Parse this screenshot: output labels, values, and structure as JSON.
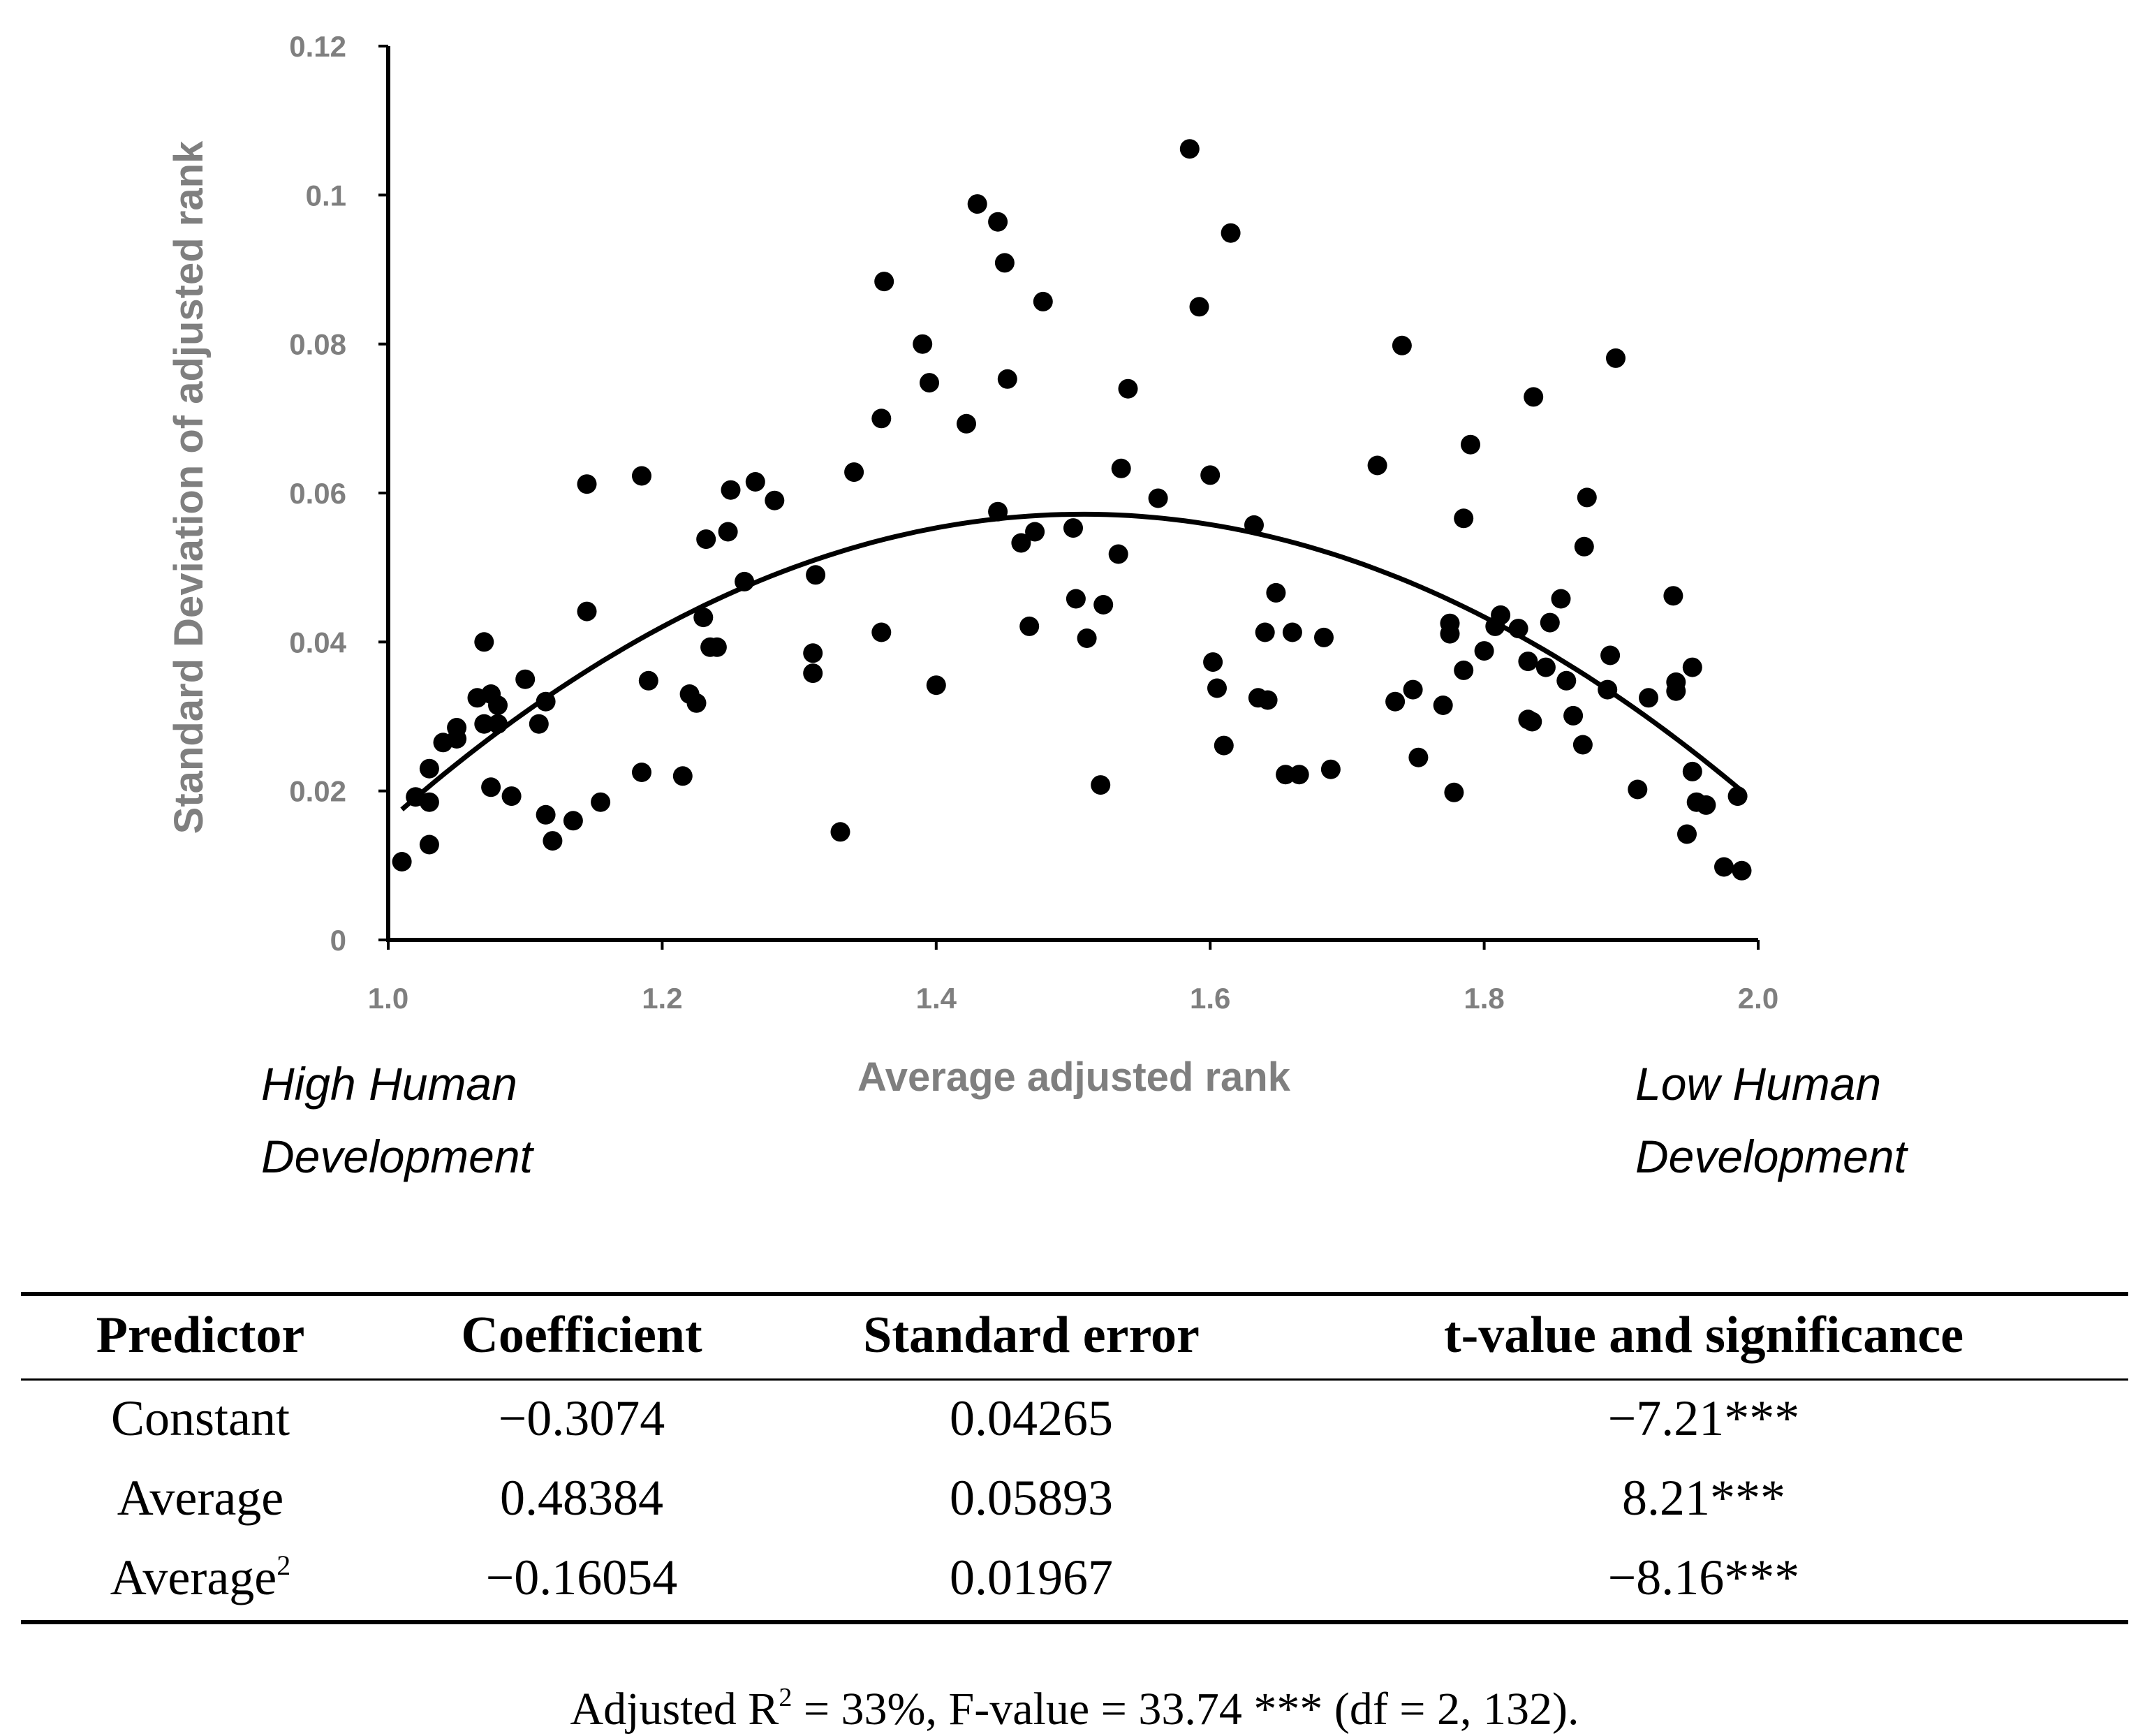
{
  "chart_data": {
    "type": "scatter",
    "xlabel": "Average adjusted rank",
    "ylabel": "Standard Deviation of adjusted rank",
    "xlim": [
      1.0,
      2.0
    ],
    "ylim": [
      0,
      0.12
    ],
    "x_ticks": [
      "1.0",
      "1.2",
      "1.4",
      "1.6",
      "1.8",
      "2.0"
    ],
    "y_ticks": [
      "0",
      "0.02",
      "0.04",
      "0.06",
      "0.08",
      "0.1",
      "0.12"
    ],
    "left_note": [
      "High Human",
      "Development"
    ],
    "right_note": [
      "Low Human",
      "Development"
    ],
    "trendline": {
      "type": "quadratic",
      "constant": -0.3074,
      "linear": 0.48384,
      "quadratic": -0.16054,
      "x_range": [
        1.01,
        1.99
      ]
    },
    "points": [
      [
        1.01,
        0.0105
      ],
      [
        1.02,
        0.0192
      ],
      [
        1.03,
        0.023
      ],
      [
        1.03,
        0.0185
      ],
      [
        1.03,
        0.0128
      ],
      [
        1.04,
        0.0265
      ],
      [
        1.05,
        0.0285
      ],
      [
        1.05,
        0.027
      ],
      [
        1.065,
        0.0325
      ],
      [
        1.07,
        0.04
      ],
      [
        1.07,
        0.029
      ],
      [
        1.075,
        0.033
      ],
      [
        1.08,
        0.0315
      ],
      [
        1.075,
        0.0205
      ],
      [
        1.08,
        0.029
      ],
      [
        1.09,
        0.0193
      ],
      [
        1.1,
        0.035
      ],
      [
        1.11,
        0.029
      ],
      [
        1.115,
        0.032
      ],
      [
        1.115,
        0.0168
      ],
      [
        1.12,
        0.0133
      ],
      [
        1.135,
        0.016
      ],
      [
        1.145,
        0.0612
      ],
      [
        1.145,
        0.0441
      ],
      [
        1.155,
        0.0185
      ],
      [
        1.185,
        0.0623
      ],
      [
        1.185,
        0.0225
      ],
      [
        1.19,
        0.0348
      ],
      [
        1.215,
        0.022
      ],
      [
        1.22,
        0.033
      ],
      [
        1.225,
        0.0318
      ],
      [
        1.23,
        0.0433
      ],
      [
        1.232,
        0.0538
      ],
      [
        1.235,
        0.0393
      ],
      [
        1.24,
        0.0393
      ],
      [
        1.248,
        0.0548
      ],
      [
        1.25,
        0.0604
      ],
      [
        1.26,
        0.0481
      ],
      [
        1.268,
        0.0615
      ],
      [
        1.282,
        0.059
      ],
      [
        1.31,
        0.0385
      ],
      [
        1.31,
        0.0358
      ],
      [
        1.312,
        0.049
      ],
      [
        1.33,
        0.0145
      ],
      [
        1.34,
        0.0628
      ],
      [
        1.36,
        0.07
      ],
      [
        1.362,
        0.0884
      ],
      [
        1.36,
        0.0413
      ],
      [
        1.39,
        0.08
      ],
      [
        1.395,
        0.0748
      ],
      [
        1.4,
        0.0342
      ],
      [
        1.422,
        0.0693
      ],
      [
        1.43,
        0.0988
      ],
      [
        1.445,
        0.0964
      ],
      [
        1.445,
        0.0575
      ],
      [
        1.45,
        0.0909
      ],
      [
        1.452,
        0.0753
      ],
      [
        1.462,
        0.0533
      ],
      [
        1.468,
        0.0421
      ],
      [
        1.472,
        0.0548
      ],
      [
        1.478,
        0.0857
      ],
      [
        1.5,
        0.0553
      ],
      [
        1.502,
        0.0458
      ],
      [
        1.51,
        0.0405
      ],
      [
        1.52,
        0.0208
      ],
      [
        1.522,
        0.045
      ],
      [
        1.533,
        0.0518
      ],
      [
        1.535,
        0.0633
      ],
      [
        1.54,
        0.074
      ],
      [
        1.562,
        0.0593
      ],
      [
        1.585,
        0.1062
      ],
      [
        1.592,
        0.085
      ],
      [
        1.6,
        0.0624
      ],
      [
        1.602,
        0.0373
      ],
      [
        1.605,
        0.0338
      ],
      [
        1.61,
        0.0261
      ],
      [
        1.615,
        0.0949
      ],
      [
        1.632,
        0.0557
      ],
      [
        1.635,
        0.0325
      ],
      [
        1.64,
        0.0413
      ],
      [
        1.642,
        0.0322
      ],
      [
        1.648,
        0.0466
      ],
      [
        1.655,
        0.0222
      ],
      [
        1.66,
        0.0413
      ],
      [
        1.665,
        0.0222
      ],
      [
        1.683,
        0.0406
      ],
      [
        1.688,
        0.0229
      ],
      [
        1.722,
        0.0637
      ],
      [
        1.735,
        0.032
      ],
      [
        1.74,
        0.0798
      ],
      [
        1.748,
        0.0336
      ],
      [
        1.752,
        0.0245
      ],
      [
        1.77,
        0.0315
      ],
      [
        1.775,
        0.0425
      ],
      [
        1.775,
        0.0411
      ],
      [
        1.778,
        0.0198
      ],
      [
        1.785,
        0.0362
      ],
      [
        1.785,
        0.0566
      ],
      [
        1.79,
        0.0665
      ],
      [
        1.8,
        0.0388
      ],
      [
        1.808,
        0.0421
      ],
      [
        1.812,
        0.0436
      ],
      [
        1.825,
        0.0418
      ],
      [
        1.832,
        0.0374
      ],
      [
        1.832,
        0.0296
      ],
      [
        1.835,
        0.0293
      ],
      [
        1.836,
        0.0729
      ],
      [
        1.845,
        0.0366
      ],
      [
        1.848,
        0.0426
      ],
      [
        1.856,
        0.0458
      ],
      [
        1.86,
        0.0348
      ],
      [
        1.865,
        0.0301
      ],
      [
        1.872,
        0.0262
      ],
      [
        1.873,
        0.0528
      ],
      [
        1.875,
        0.0594
      ],
      [
        1.89,
        0.0336
      ],
      [
        1.892,
        0.0382
      ],
      [
        1.896,
        0.0781
      ],
      [
        1.912,
        0.0202
      ],
      [
        1.92,
        0.0325
      ],
      [
        1.938,
        0.0462
      ],
      [
        1.94,
        0.0334
      ],
      [
        1.94,
        0.0346
      ],
      [
        1.948,
        0.0142
      ],
      [
        1.952,
        0.0366
      ],
      [
        1.952,
        0.0226
      ],
      [
        1.955,
        0.0185
      ],
      [
        1.962,
        0.0181
      ],
      [
        1.975,
        0.0098
      ],
      [
        1.985,
        0.0193
      ],
      [
        1.988,
        0.0093
      ]
    ]
  },
  "table": {
    "headers": [
      "Predictor",
      "Coefficient",
      "Standard error",
      "t-value and significance"
    ],
    "rows": [
      {
        "predictor": "Constant",
        "coefficient": "−0.3074",
        "std_error": "0.04265",
        "t_value": "−7.21***"
      },
      {
        "predictor": "Average",
        "coefficient": "0.48384",
        "std_error": "0.05893",
        "t_value": "8.21***"
      },
      {
        "predictor": "Average",
        "predictor_sup": "2",
        "coefficient": "−0.16054",
        "std_error": "0.01967",
        "t_value": "−8.16***"
      }
    ],
    "footnote_pre": "Adjusted R",
    "footnote_sup": "2",
    "footnote_post": " = 33%, F-value = 33.74 *** (df = 2, 132)."
  }
}
